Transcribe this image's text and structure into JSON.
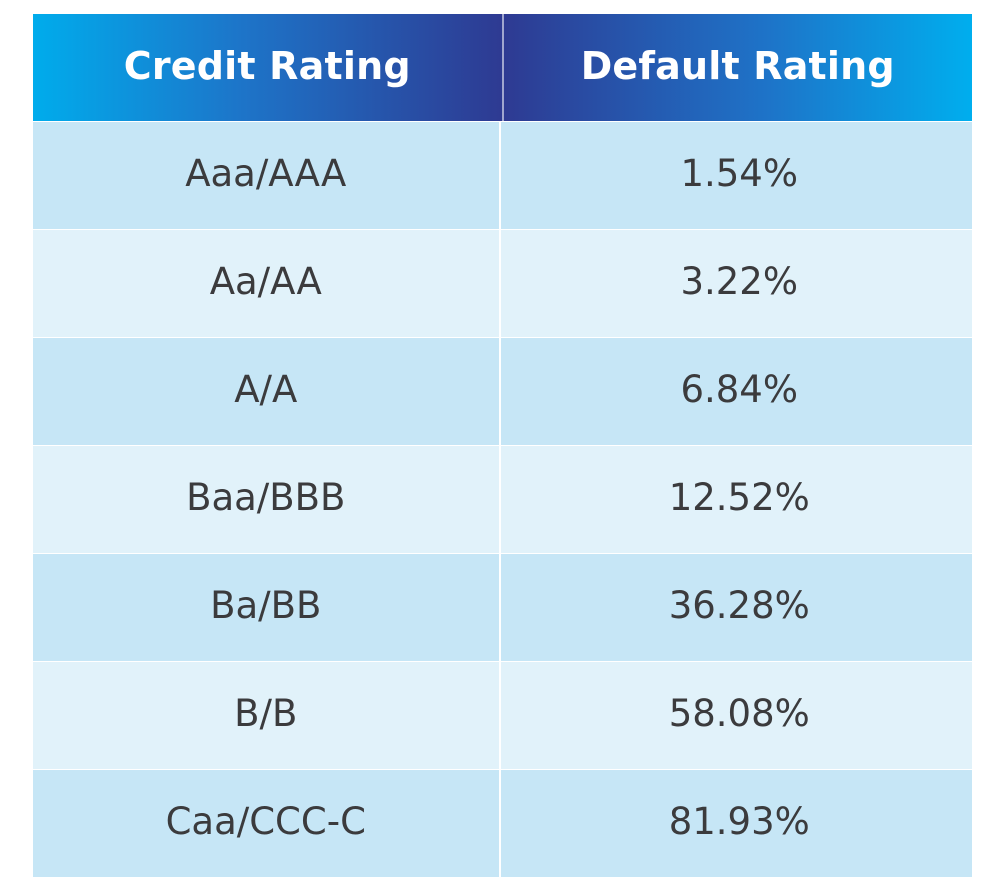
{
  "chart_data": {
    "type": "table",
    "columns": [
      "Credit Rating",
      "Default Rating"
    ],
    "rows": [
      [
        "Aaa/AAA",
        "1.54%"
      ],
      [
        "Aa/AA",
        "3.22%"
      ],
      [
        "A/A",
        "6.84%"
      ],
      [
        "Baa/BBB",
        "12.52%"
      ],
      [
        "Ba/BB",
        "36.28%"
      ],
      [
        "B/B",
        "58.08%"
      ],
      [
        "Caa/CCC-C",
        "81.93%"
      ]
    ]
  },
  "colors": {
    "header_gradient_edge": "#00acec",
    "header_gradient_center": "#2e3a92",
    "row_dark": "#c6e6f6",
    "row_light": "#e1f2fa",
    "header_text": "#ffffff",
    "body_text": "#3b3b3d"
  }
}
